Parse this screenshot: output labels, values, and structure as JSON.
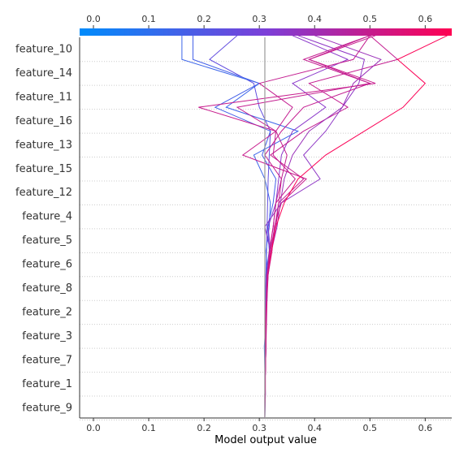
{
  "chart_data": {
    "type": "line",
    "subtype": "shap-decision-plot",
    "xlabel": "Model output value",
    "xlim": [
      -0.025,
      0.648
    ],
    "x_ticks": [
      0.0,
      0.1,
      0.2,
      0.3,
      0.4,
      0.5,
      0.6
    ],
    "x_tick_labels": [
      "0.0",
      "0.1",
      "0.2",
      "0.3",
      "0.4",
      "0.5",
      "0.6"
    ],
    "base_value": 0.31,
    "features_top_to_bottom": [
      "feature_10",
      "feature_14",
      "feature_11",
      "feature_16",
      "feature_13",
      "feature_15",
      "feature_12",
      "feature_4",
      "feature_5",
      "feature_6",
      "feature_8",
      "feature_2",
      "feature_3",
      "feature_7",
      "feature_1",
      "feature_9"
    ],
    "colorbar": {
      "range": [
        0.0,
        0.65
      ],
      "low_color": "#008bfb",
      "mid_color": "#7c3fd8",
      "high_color": "#ff0052"
    },
    "grid": "dotted-horizontal",
    "series": [
      {
        "output": 0.26,
        "values": [
          0.31,
          0.31,
          0.31,
          0.31,
          0.311,
          0.311,
          0.312,
          0.313,
          0.314,
          0.315,
          0.316,
          0.318,
          0.32,
          0.3,
          0.29,
          0.21,
          0.26
        ]
      },
      {
        "output": 0.16,
        "values": [
          0.31,
          0.311,
          0.31,
          0.309,
          0.312,
          0.31,
          0.315,
          0.312,
          0.318,
          0.32,
          0.31,
          0.29,
          0.37,
          0.24,
          0.3,
          0.16,
          0.16
        ]
      },
      {
        "output": 0.18,
        "values": [
          0.31,
          0.31,
          0.311,
          0.312,
          0.311,
          0.313,
          0.312,
          0.318,
          0.315,
          0.325,
          0.33,
          0.305,
          0.32,
          0.22,
          0.3,
          0.18,
          0.18
        ]
      },
      {
        "output": 0.36,
        "values": [
          0.31,
          0.31,
          0.311,
          0.312,
          0.311,
          0.314,
          0.315,
          0.32,
          0.316,
          0.33,
          0.335,
          0.34,
          0.36,
          0.42,
          0.36,
          0.46,
          0.36
        ]
      },
      {
        "output": 0.5,
        "values": [
          0.31,
          0.31,
          0.311,
          0.311,
          0.312,
          0.313,
          0.315,
          0.32,
          0.33,
          0.335,
          0.38,
          0.32,
          0.38,
          0.46,
          0.39,
          0.55,
          0.5
        ]
      },
      {
        "output": 0.37,
        "values": [
          0.31,
          0.31,
          0.31,
          0.311,
          0.311,
          0.312,
          0.313,
          0.32,
          0.31,
          0.34,
          0.41,
          0.38,
          0.42,
          0.45,
          0.48,
          0.49,
          0.37
        ]
      },
      {
        "output": 0.4,
        "values": [
          0.31,
          0.31,
          0.311,
          0.311,
          0.312,
          0.313,
          0.316,
          0.322,
          0.332,
          0.338,
          0.345,
          0.36,
          0.39,
          0.45,
          0.47,
          0.52,
          0.4
        ]
      },
      {
        "output": 0.5,
        "values": [
          0.31,
          0.31,
          0.311,
          0.312,
          0.311,
          0.313,
          0.314,
          0.318,
          0.325,
          0.33,
          0.34,
          0.31,
          0.34,
          0.38,
          0.5,
          0.38,
          0.5
        ]
      },
      {
        "output": 0.51,
        "values": [
          0.31,
          0.311,
          0.311,
          0.312,
          0.313,
          0.314,
          0.316,
          0.323,
          0.327,
          0.34,
          0.385,
          0.27,
          0.33,
          0.19,
          0.51,
          0.39,
          0.51
        ]
      },
      {
        "output": 0.5,
        "values": [
          0.31,
          0.31,
          0.31,
          0.311,
          0.312,
          0.313,
          0.314,
          0.319,
          0.325,
          0.33,
          0.365,
          0.325,
          0.33,
          0.26,
          0.5,
          0.39,
          0.5
        ]
      },
      {
        "output": 0.64,
        "values": [
          0.31,
          0.31,
          0.311,
          0.311,
          0.312,
          0.313,
          0.315,
          0.322,
          0.33,
          0.345,
          0.37,
          0.42,
          0.49,
          0.56,
          0.6,
          0.55,
          0.64
        ]
      },
      {
        "output": 0.5,
        "values": [
          0.31,
          0.31,
          0.311,
          0.311,
          0.312,
          0.313,
          0.315,
          0.32,
          0.328,
          0.335,
          0.34,
          0.35,
          0.33,
          0.36,
          0.3,
          0.47,
          0.5
        ]
      }
    ]
  }
}
